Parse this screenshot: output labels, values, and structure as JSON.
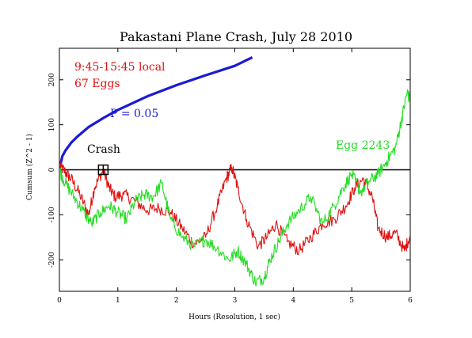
{
  "chart_data": {
    "type": "line",
    "title": "Pakastani Plane Crash, July 28 2010",
    "xlabel": "Hours (Resolution, 1 sec)",
    "ylabel": "Cumsum (Z^2 - 1)",
    "xlim": [
      0,
      6
    ],
    "ylim": [
      -270,
      270
    ],
    "x_ticks": [
      0,
      1,
      2,
      3,
      4,
      5,
      6
    ],
    "y_ticks": [
      -200,
      -100,
      0,
      100,
      200
    ],
    "grid": false,
    "annotations": {
      "time_window": "9:45-15:45 local",
      "egg_count": "67 Eggs",
      "p_label": "P = 0.05",
      "event_label": "Crash",
      "egg_label": "Egg 2243"
    },
    "event_marker": {
      "x": 0.75,
      "y": 0
    },
    "series": [
      {
        "name": "P = 0.05",
        "color": "#1a1ad6",
        "x": [
          0,
          0.05,
          0.1,
          0.2,
          0.3,
          0.5,
          0.75,
          1.0,
          1.5,
          2.0,
          2.5,
          3.0,
          3.3
        ],
        "values": [
          0,
          30,
          42,
          60,
          73,
          95,
          115,
          133,
          163,
          188,
          210,
          231,
          250
        ]
      },
      {
        "name": "67 Eggs",
        "color": "#e01010",
        "x": [
          0,
          0.1,
          0.2,
          0.35,
          0.5,
          0.6,
          0.75,
          0.85,
          0.95,
          1.1,
          1.3,
          1.5,
          1.7,
          1.9,
          2.1,
          2.3,
          2.5,
          2.7,
          2.85,
          2.95,
          3.05,
          3.2,
          3.4,
          3.55,
          3.7,
          3.9,
          4.1,
          4.3,
          4.5,
          4.7,
          4.9,
          5.05,
          5.2,
          5.35,
          5.45,
          5.6,
          5.75,
          5.9,
          6.0
        ],
        "values": [
          10,
          -5,
          -20,
          -55,
          -100,
          -40,
          0,
          -40,
          -60,
          -55,
          -70,
          -90,
          -85,
          -95,
          -130,
          -165,
          -150,
          -80,
          -20,
          5,
          -40,
          -110,
          -170,
          -150,
          -120,
          -160,
          -180,
          -150,
          -120,
          -110,
          -80,
          -40,
          -20,
          -60,
          -130,
          -150,
          -140,
          -180,
          -145
        ]
      },
      {
        "name": "Egg 2243",
        "color": "#22dd22",
        "x": [
          0,
          0.1,
          0.25,
          0.4,
          0.55,
          0.7,
          0.85,
          1.0,
          1.15,
          1.3,
          1.45,
          1.6,
          1.75,
          1.9,
          2.1,
          2.3,
          2.5,
          2.7,
          2.9,
          3.05,
          3.2,
          3.35,
          3.5,
          3.6,
          3.75,
          3.9,
          4.1,
          4.3,
          4.5,
          4.7,
          4.85,
          5.0,
          5.15,
          5.3,
          5.45,
          5.6,
          5.75,
          5.85,
          5.95,
          6.0
        ],
        "values": [
          0,
          -30,
          -60,
          -90,
          -120,
          -95,
          -80,
          -95,
          -110,
          -70,
          -55,
          -60,
          -30,
          -110,
          -150,
          -170,
          -155,
          -175,
          -200,
          -180,
          -210,
          -250,
          -240,
          -200,
          -160,
          -120,
          -90,
          -60,
          -120,
          -80,
          -40,
          -10,
          -50,
          -25,
          -10,
          20,
          50,
          110,
          175,
          150
        ]
      }
    ]
  }
}
